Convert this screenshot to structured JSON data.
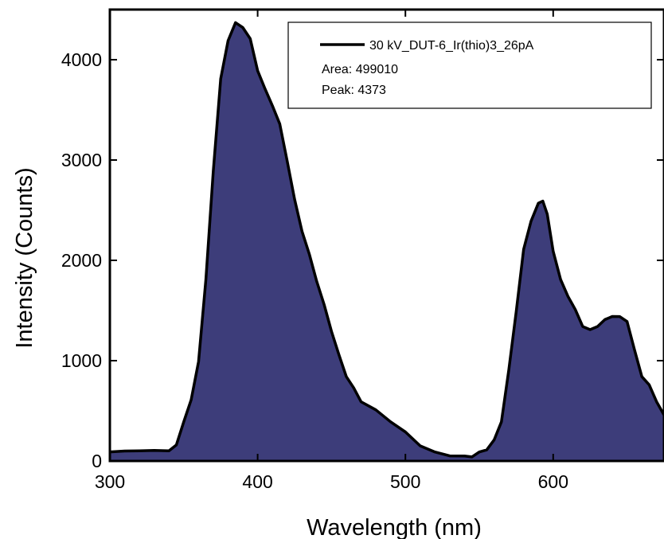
{
  "chart_data": {
    "type": "area",
    "xlabel": "Wavelength (nm)",
    "ylabel": "Intensity (Counts)",
    "xlim": [
      300,
      675
    ],
    "ylim": [
      0,
      4500
    ],
    "xticks": [
      300,
      400,
      500,
      600
    ],
    "yticks": [
      0,
      1000,
      2000,
      3000,
      4000
    ],
    "xtick_labels": [
      "300",
      "400",
      "500",
      "600"
    ],
    "ytick_labels": [
      "0",
      "1000",
      "2000",
      "3000",
      "4000"
    ],
    "legend": {
      "placement": "top-right",
      "series_label": "30 kV_DUT-6_Ir(thio)3_26pA",
      "lines": [
        "Area: 499010",
        "Peak: 4373"
      ]
    },
    "colors": {
      "fill": "#3d3d7a",
      "line": "#000000"
    },
    "series": [
      {
        "name": "30 kV_DUT-6_Ir(thio)3_26pA",
        "x": [
          300,
          310,
          320,
          330,
          340,
          345,
          350,
          355,
          360,
          365,
          370,
          375,
          380,
          385,
          390,
          395,
          400,
          405,
          410,
          415,
          420,
          425,
          430,
          435,
          440,
          445,
          450,
          455,
          460,
          465,
          470,
          480,
          490,
          500,
          510,
          520,
          530,
          540,
          545,
          550,
          555,
          560,
          565,
          570,
          575,
          580,
          585,
          590,
          593,
          596,
          600,
          605,
          610,
          615,
          620,
          625,
          630,
          635,
          640,
          645,
          650,
          655,
          660,
          665,
          670,
          675
        ],
        "y": [
          100,
          90,
          110,
          95,
          110,
          150,
          400,
          600,
          1000,
          1800,
          2900,
          3800,
          4200,
          4360,
          4330,
          4200,
          3900,
          3700,
          3550,
          3350,
          3000,
          2600,
          2300,
          2050,
          1800,
          1550,
          1300,
          1050,
          850,
          720,
          600,
          500,
          400,
          280,
          160,
          80,
          60,
          40,
          50,
          80,
          120,
          200,
          400,
          900,
          1500,
          2100,
          2400,
          2560,
          2600,
          2450,
          2100,
          1800,
          1650,
          1500,
          1350,
          1300,
          1350,
          1400,
          1450,
          1430,
          1400,
          1100,
          850,
          750,
          600,
          450
        ]
      }
    ]
  }
}
